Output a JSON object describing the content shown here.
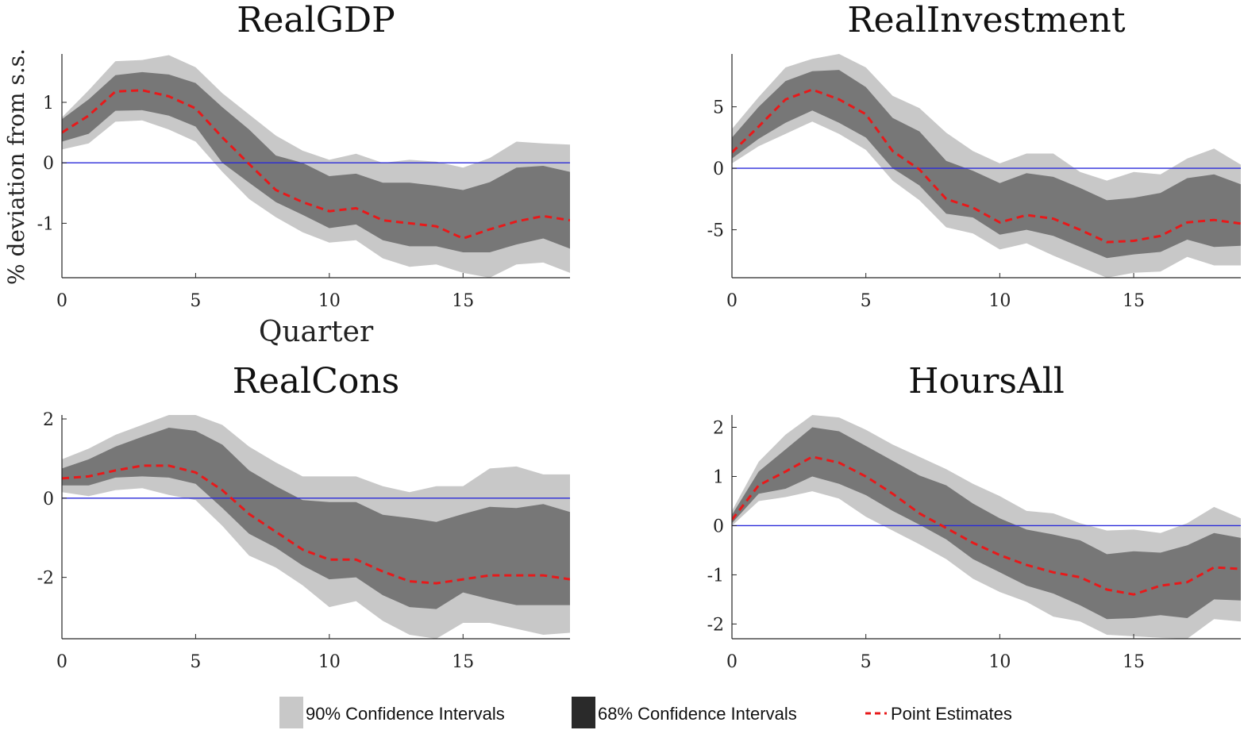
{
  "figure": {
    "ylabel": "% deviation from s.s.",
    "xlabel": "Quarter"
  },
  "legend": {
    "items": [
      {
        "label": "90% Confidence Intervals",
        "color": "#c8c8c8"
      },
      {
        "label": "68% Confidence Intervals",
        "color": "#2a2a2a"
      },
      {
        "label": "Point Estimates",
        "color": "#e8191a"
      }
    ]
  },
  "colors": {
    "band90": "#c8c8c8",
    "band68": "#777777",
    "point": "#e8191a",
    "zero_line": "#2b2bd9",
    "axis": "#262626"
  },
  "chart_data": [
    {
      "type": "area",
      "title": "RealGDP",
      "x": [
        0,
        1,
        2,
        3,
        4,
        5,
        6,
        7,
        8,
        9,
        10,
        11,
        12,
        13,
        14,
        15,
        16,
        17,
        18,
        19
      ],
      "xlim": [
        0,
        19
      ],
      "ylim": [
        -1.9,
        1.8
      ],
      "xticks": [
        0,
        5,
        10,
        15
      ],
      "yticks": [
        -1,
        0,
        1
      ],
      "series": [
        {
          "role": "band90_upper",
          "values": [
            0.75,
            1.2,
            1.68,
            1.7,
            1.78,
            1.58,
            1.15,
            0.8,
            0.45,
            0.2,
            0.05,
            0.15,
            0.0,
            0.05,
            0.02,
            -0.08,
            0.08,
            0.35,
            0.32,
            0.3
          ]
        },
        {
          "role": "band90_lower",
          "values": [
            0.22,
            0.32,
            0.68,
            0.7,
            0.55,
            0.35,
            -0.15,
            -0.6,
            -0.9,
            -1.15,
            -1.32,
            -1.28,
            -1.58,
            -1.72,
            -1.68,
            -1.82,
            -1.9,
            -1.68,
            -1.65,
            -1.82
          ]
        },
        {
          "role": "band68_upper",
          "values": [
            0.72,
            1.05,
            1.45,
            1.5,
            1.46,
            1.32,
            0.92,
            0.55,
            0.12,
            0.0,
            -0.22,
            -0.18,
            -0.33,
            -0.33,
            -0.38,
            -0.45,
            -0.32,
            -0.08,
            -0.05,
            -0.15
          ]
        },
        {
          "role": "band68_lower",
          "values": [
            0.35,
            0.48,
            0.86,
            0.87,
            0.78,
            0.6,
            0.0,
            -0.33,
            -0.65,
            -0.86,
            -1.08,
            -1.02,
            -1.28,
            -1.38,
            -1.38,
            -1.48,
            -1.48,
            -1.35,
            -1.25,
            -1.42
          ]
        },
        {
          "role": "point",
          "values": [
            0.5,
            0.78,
            1.18,
            1.2,
            1.1,
            0.9,
            0.42,
            -0.02,
            -0.45,
            -0.65,
            -0.8,
            -0.75,
            -0.95,
            -1.0,
            -1.05,
            -1.25,
            -1.1,
            -0.97,
            -0.88,
            -0.95
          ]
        }
      ]
    },
    {
      "type": "area",
      "title": "RealInvestment",
      "x": [
        0,
        1,
        2,
        3,
        4,
        5,
        6,
        7,
        8,
        9,
        10,
        11,
        12,
        13,
        14,
        15,
        16,
        17,
        18,
        19
      ],
      "xlim": [
        0,
        19
      ],
      "ylim": [
        -8.9,
        9.3
      ],
      "xticks": [
        0,
        5,
        10,
        15
      ],
      "yticks": [
        -5,
        0,
        5
      ],
      "series": [
        {
          "role": "band90_upper",
          "values": [
            3.2,
            5.8,
            8.2,
            8.9,
            9.3,
            8.2,
            5.9,
            4.9,
            2.9,
            1.4,
            0.4,
            1.2,
            1.2,
            -0.3,
            -1.0,
            -0.3,
            -0.5,
            0.8,
            1.6,
            0.3
          ]
        },
        {
          "role": "band90_lower",
          "values": [
            0.4,
            1.8,
            2.8,
            3.8,
            2.8,
            1.5,
            -1.0,
            -2.6,
            -4.8,
            -5.3,
            -6.6,
            -6.1,
            -7.1,
            -8.0,
            -8.9,
            -8.5,
            -8.4,
            -7.2,
            -7.9,
            -7.9
          ]
        },
        {
          "role": "band68_upper",
          "values": [
            2.5,
            5.0,
            7.1,
            7.9,
            8.0,
            6.6,
            4.1,
            3.0,
            0.6,
            -0.2,
            -1.2,
            -0.4,
            -0.7,
            -1.6,
            -2.6,
            -2.4,
            -2.0,
            -0.8,
            -0.5,
            -1.3
          ]
        },
        {
          "role": "band68_lower",
          "values": [
            0.8,
            2.4,
            3.7,
            4.7,
            3.7,
            2.5,
            0.0,
            -1.4,
            -3.7,
            -4.0,
            -5.4,
            -5.0,
            -5.5,
            -6.4,
            -7.3,
            -7.0,
            -6.8,
            -5.8,
            -6.4,
            -6.3
          ]
        },
        {
          "role": "point",
          "values": [
            1.3,
            3.4,
            5.6,
            6.4,
            5.6,
            4.4,
            1.4,
            -0.1,
            -2.5,
            -3.2,
            -4.4,
            -3.8,
            -4.1,
            -5.0,
            -6.0,
            -5.9,
            -5.5,
            -4.4,
            -4.2,
            -4.5
          ]
        }
      ]
    },
    {
      "type": "area",
      "title": "RealCons",
      "x": [
        0,
        1,
        2,
        3,
        4,
        5,
        6,
        7,
        8,
        9,
        10,
        11,
        12,
        13,
        14,
        15,
        16,
        17,
        18,
        19
      ],
      "xlim": [
        0,
        19
      ],
      "ylim": [
        -3.55,
        2.1
      ],
      "xticks": [
        0,
        5,
        10,
        15
      ],
      "yticks": [
        -2,
        0,
        2
      ],
      "series": [
        {
          "role": "band90_upper",
          "values": [
            0.98,
            1.25,
            1.6,
            1.85,
            2.1,
            2.1,
            1.85,
            1.3,
            0.9,
            0.55,
            0.55,
            0.55,
            0.3,
            0.15,
            0.3,
            0.3,
            0.75,
            0.8,
            0.6,
            0.6
          ]
        },
        {
          "role": "band90_lower",
          "values": [
            0.15,
            0.05,
            0.2,
            0.25,
            0.08,
            -0.05,
            -0.7,
            -1.45,
            -1.75,
            -2.2,
            -2.75,
            -2.6,
            -3.1,
            -3.45,
            -3.55,
            -3.15,
            -3.15,
            -3.3,
            -3.45,
            -3.4
          ]
        },
        {
          "role": "band68_upper",
          "values": [
            0.75,
            0.98,
            1.3,
            1.55,
            1.78,
            1.7,
            1.35,
            0.7,
            0.3,
            -0.05,
            -0.1,
            -0.1,
            -0.42,
            -0.5,
            -0.6,
            -0.4,
            -0.22,
            -0.25,
            -0.15,
            -0.35
          ]
        },
        {
          "role": "band68_lower",
          "values": [
            0.32,
            0.32,
            0.52,
            0.55,
            0.52,
            0.36,
            -0.25,
            -0.9,
            -1.25,
            -1.7,
            -2.05,
            -2.0,
            -2.45,
            -2.75,
            -2.8,
            -2.38,
            -2.55,
            -2.7,
            -2.7,
            -2.7
          ]
        },
        {
          "role": "point",
          "values": [
            0.5,
            0.55,
            0.7,
            0.82,
            0.82,
            0.65,
            0.2,
            -0.4,
            -0.85,
            -1.3,
            -1.55,
            -1.55,
            -1.85,
            -2.1,
            -2.15,
            -2.05,
            -1.95,
            -1.95,
            -1.95,
            -2.05
          ]
        }
      ]
    },
    {
      "type": "area",
      "title": "HoursAll",
      "x": [
        0,
        1,
        2,
        3,
        4,
        5,
        6,
        7,
        8,
        9,
        10,
        11,
        12,
        13,
        14,
        15,
        16,
        17,
        18,
        19
      ],
      "xlim": [
        0,
        19
      ],
      "ylim": [
        -2.3,
        2.25
      ],
      "xticks": [
        0,
        5,
        10,
        15
      ],
      "yticks": [
        -2,
        -1,
        0,
        1,
        2
      ],
      "series": [
        {
          "role": "band90_upper",
          "values": [
            0.3,
            1.3,
            1.85,
            2.25,
            2.2,
            1.95,
            1.65,
            1.4,
            1.15,
            0.85,
            0.6,
            0.3,
            0.25,
            0.05,
            -0.1,
            -0.08,
            -0.15,
            0.05,
            0.38,
            0.15
          ]
        },
        {
          "role": "band90_lower",
          "values": [
            0.0,
            0.5,
            0.58,
            0.7,
            0.55,
            0.18,
            -0.1,
            -0.38,
            -0.68,
            -1.08,
            -1.35,
            -1.55,
            -1.85,
            -1.95,
            -2.22,
            -2.25,
            -2.28,
            -2.3,
            -1.9,
            -1.95
          ]
        },
        {
          "role": "band68_upper",
          "values": [
            0.22,
            1.1,
            1.55,
            2.0,
            1.92,
            1.62,
            1.32,
            1.02,
            0.82,
            0.45,
            0.15,
            -0.08,
            -0.18,
            -0.3,
            -0.58,
            -0.52,
            -0.55,
            -0.4,
            -0.15,
            -0.25
          ]
        },
        {
          "role": "band68_lower",
          "values": [
            0.05,
            0.65,
            0.75,
            1.0,
            0.85,
            0.62,
            0.3,
            0.02,
            -0.28,
            -0.68,
            -0.95,
            -1.22,
            -1.38,
            -1.62,
            -1.9,
            -1.88,
            -1.82,
            -1.88,
            -1.5,
            -1.52
          ]
        },
        {
          "role": "point",
          "values": [
            0.12,
            0.82,
            1.1,
            1.4,
            1.28,
            1.0,
            0.65,
            0.25,
            -0.05,
            -0.35,
            -0.6,
            -0.8,
            -0.95,
            -1.05,
            -1.3,
            -1.4,
            -1.22,
            -1.15,
            -0.85,
            -0.88
          ]
        }
      ]
    }
  ]
}
